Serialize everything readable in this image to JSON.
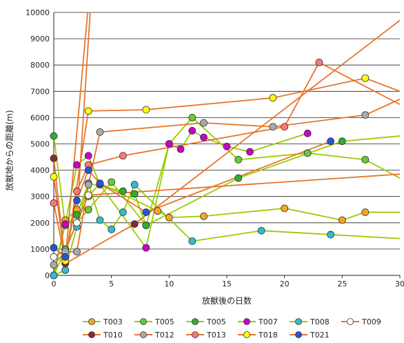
{
  "chart_data": {
    "type": "line",
    "title": "",
    "xlabel": "放獣後の日数",
    "ylabel": "放獣地からの距離(m)",
    "xlim": [
      0,
      30
    ],
    "ylim": [
      0,
      10000
    ],
    "xticks": [
      0,
      5,
      10,
      15,
      20,
      25,
      30
    ],
    "yticks": [
      0,
      1000,
      2000,
      3000,
      4000,
      5000,
      6000,
      7000,
      8000,
      9000,
      10000
    ],
    "grid": "horizontal",
    "legend_position": "bottom",
    "connector_color": "#E8742A",
    "series": [
      {
        "name": "T003",
        "line_color": "#99CC00",
        "marker_color": "#F5A623",
        "x": [
          0,
          1,
          2,
          3,
          4,
          9,
          10,
          13,
          20,
          25,
          27,
          30
        ],
        "y": [
          0,
          2100,
          2500,
          3000,
          3500,
          2450,
          2200,
          2250,
          2550,
          2100,
          2400,
          2400
        ]
      },
      {
        "name": "T005",
        "line_color": "#99CC00",
        "marker_color": "#66CC33",
        "x": [
          0,
          1,
          2,
          3,
          5,
          8,
          10,
          12,
          16,
          22,
          27,
          30
        ],
        "y": [
          0,
          1000,
          2000,
          2500,
          3550,
          1900,
          5000,
          6000,
          4400,
          4650,
          4400,
          3700
        ]
      },
      {
        "name": "T005",
        "line_color": "#99CC00",
        "marker_color": "#33AA33",
        "x": [
          0,
          1,
          2,
          3,
          6,
          7,
          8,
          16,
          25,
          30
        ],
        "y": [
          5300,
          1900,
          2300,
          3500,
          3200,
          3100,
          1900,
          3700,
          5100,
          5300
        ]
      },
      {
        "name": "T007",
        "line_color": "#99CC00",
        "marker_color": "#CC00CC",
        "x": [
          0,
          1,
          2,
          3,
          4,
          8,
          10,
          11,
          12,
          13,
          15,
          17,
          22
        ],
        "y": [
          0,
          1950,
          4200,
          4550,
          3450,
          1050,
          5000,
          4800,
          5500,
          5250,
          4900,
          4700,
          5400
        ]
      },
      {
        "name": "T008",
        "line_color": "#99CC00",
        "marker_color": "#33BBCC",
        "x": [
          0,
          1,
          2,
          3,
          4,
          5,
          6,
          7,
          12,
          18,
          24,
          30
        ],
        "y": [
          0,
          200,
          1850,
          3500,
          2100,
          1750,
          2400,
          3450,
          1300,
          1700,
          1550,
          1400
        ]
      },
      {
        "name": "T009",
        "line_color": "#E8742A",
        "marker_color": "#FFFFFF",
        "x": [
          0,
          1,
          2,
          3,
          30
        ],
        "y": [
          700,
          950,
          2000,
          3050,
          3850
        ]
      },
      {
        "name": "T010",
        "line_color": "#E8742A",
        "marker_color": "#8B2A2A",
        "x": [
          0,
          1,
          7,
          30
        ],
        "y": [
          4450,
          450,
          1950,
          9700
        ]
      },
      {
        "name": "T012",
        "line_color": "#E8742A",
        "marker_color": "#AAAAAA",
        "x": [
          0,
          1,
          2,
          3,
          4,
          13,
          19,
          27,
          30
        ],
        "y": [
          400,
          900,
          900,
          3450,
          5450,
          5800,
          5650,
          6100,
          6700
        ]
      },
      {
        "name": "T013",
        "line_color": "#E8742A",
        "marker_color": "#FF7777",
        "x": [
          0,
          1,
          2,
          3,
          6,
          20,
          23,
          30
        ],
        "y": [
          2750,
          550,
          3200,
          4200,
          4550,
          5650,
          8100,
          6500
        ]
      },
      {
        "name": "T018",
        "line_color": "#E8742A",
        "marker_color": "#FFFF00",
        "x": [
          0,
          1,
          3,
          8,
          19,
          27,
          30
        ],
        "y": [
          3750,
          550,
          6250,
          6300,
          6750,
          7500,
          7000
        ]
      },
      {
        "name": "T021",
        "line_color": "#E8742A",
        "marker_color": "#2255DD",
        "x": [
          0,
          1,
          2,
          3,
          4,
          8,
          24
        ],
        "y": [
          1050,
          700,
          2850,
          4000,
          3500,
          2400,
          5100
        ]
      }
    ],
    "overflow_lines": [
      {
        "x": [
          2,
          3.2
        ],
        "y": [
          2200,
          10300
        ]
      },
      {
        "x": [
          1,
          3.0
        ],
        "y": [
          600,
          10300
        ]
      }
    ]
  }
}
